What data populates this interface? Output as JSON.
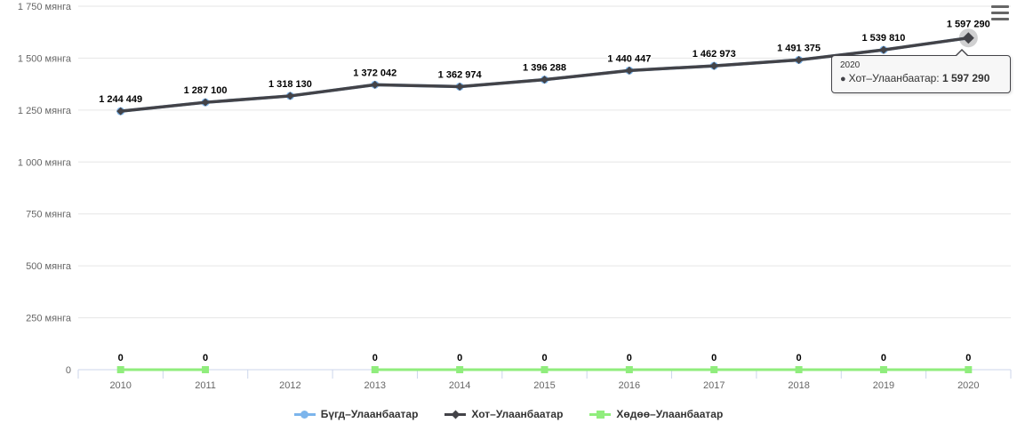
{
  "chart_data": {
    "type": "line",
    "categories": [
      "2010",
      "2011",
      "2012",
      "2013",
      "2014",
      "2015",
      "2016",
      "2017",
      "2018",
      "2019",
      "2020"
    ],
    "series": [
      {
        "name": "Бүгд–Улаанбаатар",
        "color": "#7cb5ec",
        "marker": "circle",
        "values": [
          1244449,
          1287100,
          1318130,
          1372042,
          1362974,
          1396288,
          1440447,
          1462973,
          1491375,
          1539810,
          1597290
        ],
        "note": "drawn first, almost fully covered by Хот–Улаанбаатар line"
      },
      {
        "name": "Хот–Улаанбаатар",
        "color": "#434348",
        "marker": "diamond",
        "values": [
          1244449,
          1287100,
          1318130,
          1372042,
          1362974,
          1396288,
          1440447,
          1462973,
          1491375,
          1539810,
          1597290
        ],
        "data_labels_visible": true
      },
      {
        "name": "Хөдөө–Улаанбаатар",
        "color": "#90ed7d",
        "marker": "square",
        "values": [
          0,
          0,
          null,
          0,
          0,
          0,
          0,
          0,
          0,
          0,
          0
        ],
        "data_labels_visible": true
      }
    ],
    "title": "",
    "xlabel": "",
    "ylabel": "",
    "ylim": [
      0,
      1750000
    ],
    "grid": true,
    "legend_position": "bottom",
    "yaxis_ticks": [
      {
        "value": 1750000,
        "label": "1 750 мянга"
      },
      {
        "value": 1500000,
        "label": "1 500 мянга"
      },
      {
        "value": 1250000,
        "label": "1 250 мянга"
      },
      {
        "value": 1000000,
        "label": "1 000 мянга"
      },
      {
        "value": 750000,
        "label": "750 мянга"
      },
      {
        "value": 500000,
        "label": "500 мянга"
      },
      {
        "value": 250000,
        "label": "250 мянга"
      },
      {
        "value": 0,
        "label": "0"
      }
    ],
    "hovered_point": {
      "category": "2020",
      "series": "Хот–Улаанбаатар",
      "value": 1597290
    }
  },
  "tooltip": {
    "year": "2020",
    "bullet": "●",
    "series_label": "Хот–Улаанбаатар:",
    "value": "1 597 290"
  },
  "legend": {
    "items": [
      {
        "label": "Бүгд–Улаанбаатар",
        "color": "#7cb5ec",
        "marker": "circle"
      },
      {
        "label": "Хот–Улаанбаатар",
        "color": "#434348",
        "marker": "diamond"
      },
      {
        "label": "Хөдөө–Улаанбаатар",
        "color": "#90ed7d",
        "marker": "square"
      }
    ]
  },
  "colors": {
    "grid": "#e6e6e6",
    "axis_line": "#ccd6eb",
    "axis_text": "#666666",
    "legend_text": "#333333",
    "tooltip_bg": "#f7f7f7",
    "tooltip_border": "#434348"
  },
  "menu": {
    "export_icon": "hamburger-icon"
  }
}
